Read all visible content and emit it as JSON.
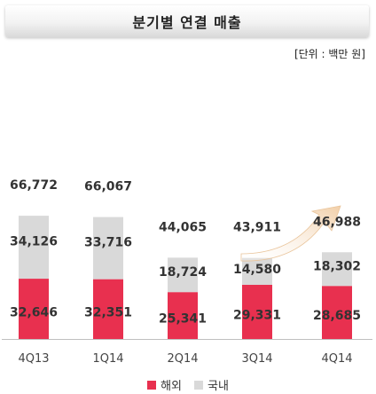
{
  "title": "분기별 연결 매출",
  "unit": "[단위 : 백만 원]",
  "colors": {
    "overseas": "#e8304f",
    "domestic": "#d9d9d9",
    "arrow": "#f5dcc0"
  },
  "chart_data": {
    "type": "bar",
    "stacked": true,
    "categories": [
      "4Q13",
      "1Q14",
      "2Q14",
      "3Q14",
      "4Q14"
    ],
    "series": [
      {
        "name": "해외",
        "values": [
          32646,
          32351,
          25341,
          29331,
          28685
        ]
      },
      {
        "name": "국내",
        "values": [
          34126,
          33716,
          18724,
          14580,
          18302
        ]
      }
    ],
    "totals": [
      66772,
      66067,
      44065,
      43911,
      46988
    ],
    "labels": {
      "overseas": [
        "32,646",
        "32,351",
        "25,341",
        "29,331",
        "28,685"
      ],
      "domestic": [
        "34,126",
        "33,716",
        "18,724",
        "14,580",
        "18,302"
      ],
      "totals": [
        "66,772",
        "66,067",
        "44,065",
        "43,911",
        "46,988"
      ]
    },
    "legend": [
      "해외",
      "국내"
    ],
    "legend_position": "bottom",
    "grid": false
  }
}
